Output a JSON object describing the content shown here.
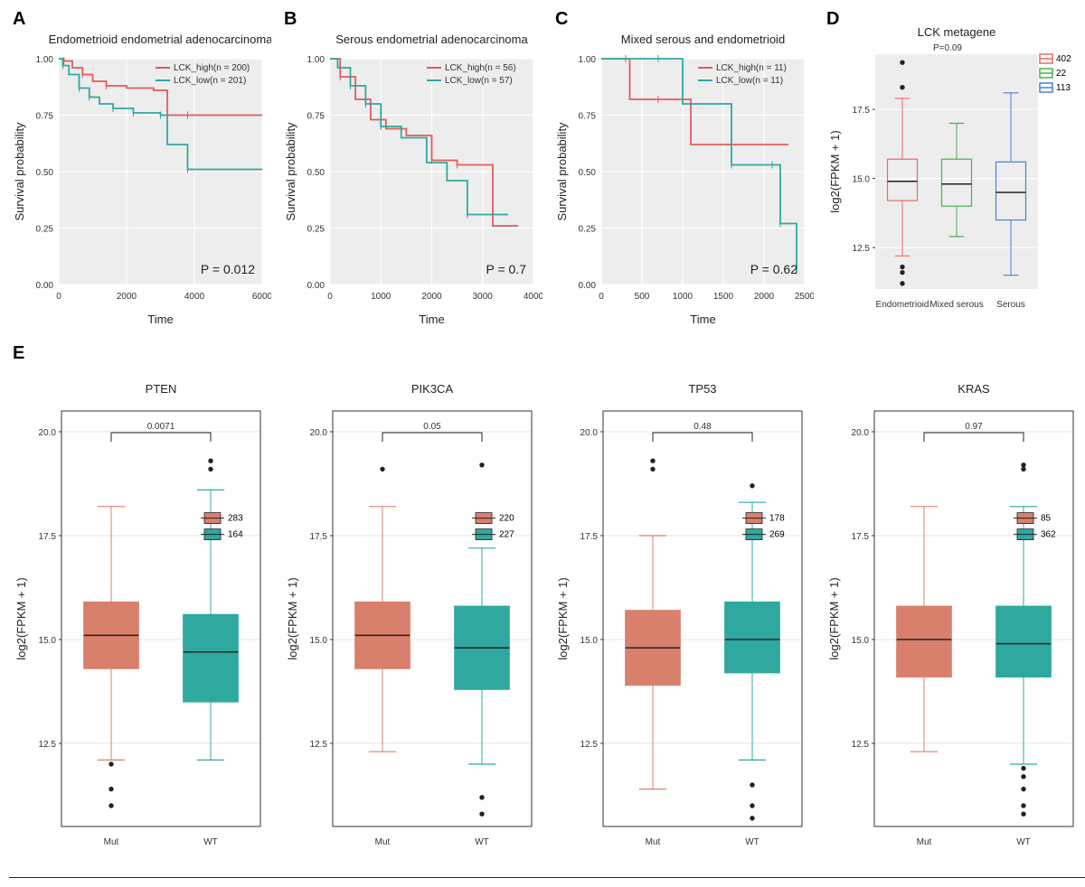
{
  "panelLabels": {
    "A": "A",
    "B": "B",
    "C": "C",
    "D": "D",
    "E": "E"
  },
  "colors": {
    "km_high": "#e15b5b",
    "km_low": "#2fa8a0",
    "box_mut": "#d9806c",
    "box_wt": "#2fa8a0",
    "box_d1": "#e86b63",
    "box_d2": "#4cb050",
    "box_d3": "#4a7fd6",
    "plot_bg": "#ededed",
    "grid": "#ffffff"
  },
  "panelA": {
    "title": "Endometrioid endometrial adenocarcinoma",
    "xlabel": "Time",
    "ylabel": "Survival probability",
    "xlim": [
      0,
      6000
    ],
    "xticks": [
      0,
      2000,
      4000,
      6000
    ],
    "ylim": [
      0,
      1
    ],
    "yticks": [
      0.0,
      0.25,
      0.5,
      0.75,
      1.0
    ],
    "pvalue": "P = 0.012",
    "legend": [
      {
        "label": "LCK_high(n = 200)",
        "color": "#e15b5b"
      },
      {
        "label": "LCK_low(n = 201)",
        "color": "#2fa8a0"
      }
    ],
    "series": [
      {
        "color": "#e15b5b",
        "points": [
          [
            0,
            1.0
          ],
          [
            150,
            0.99
          ],
          [
            400,
            0.96
          ],
          [
            700,
            0.93
          ],
          [
            1000,
            0.9
          ],
          [
            1400,
            0.88
          ],
          [
            2000,
            0.87
          ],
          [
            2800,
            0.86
          ],
          [
            3200,
            0.75
          ],
          [
            3800,
            0.75
          ],
          [
            6000,
            0.75
          ]
        ]
      },
      {
        "color": "#2fa8a0",
        "points": [
          [
            0,
            1.0
          ],
          [
            120,
            0.97
          ],
          [
            300,
            0.93
          ],
          [
            600,
            0.87
          ],
          [
            900,
            0.83
          ],
          [
            1200,
            0.8
          ],
          [
            1600,
            0.78
          ],
          [
            2200,
            0.76
          ],
          [
            3000,
            0.75
          ],
          [
            3200,
            0.62
          ],
          [
            3800,
            0.51
          ],
          [
            5000,
            0.51
          ],
          [
            6000,
            0.51
          ]
        ]
      }
    ]
  },
  "panelB": {
    "title": "Serous endometrial adenocarcinoma",
    "xlabel": "Time",
    "ylabel": "Survival probability",
    "xlim": [
      0,
      4000
    ],
    "xticks": [
      0,
      1000,
      2000,
      3000,
      4000
    ],
    "ylim": [
      0,
      1
    ],
    "yticks": [
      0.0,
      0.25,
      0.5,
      0.75,
      1.0
    ],
    "pvalue": "P = 0.7",
    "legend": [
      {
        "label": "LCK_high(n = 56)",
        "color": "#e15b5b"
      },
      {
        "label": "LCK_low(n = 57)",
        "color": "#2fa8a0"
      }
    ],
    "series": [
      {
        "color": "#e15b5b",
        "points": [
          [
            0,
            1.0
          ],
          [
            200,
            0.92
          ],
          [
            500,
            0.82
          ],
          [
            800,
            0.73
          ],
          [
            1100,
            0.69
          ],
          [
            1500,
            0.66
          ],
          [
            2000,
            0.55
          ],
          [
            2500,
            0.53
          ],
          [
            3000,
            0.53
          ],
          [
            3200,
            0.26
          ],
          [
            3700,
            0.26
          ]
        ]
      },
      {
        "color": "#2fa8a0",
        "points": [
          [
            0,
            1.0
          ],
          [
            150,
            0.96
          ],
          [
            400,
            0.88
          ],
          [
            700,
            0.8
          ],
          [
            1000,
            0.7
          ],
          [
            1400,
            0.65
          ],
          [
            1900,
            0.54
          ],
          [
            2300,
            0.46
          ],
          [
            2700,
            0.31
          ],
          [
            3500,
            0.31
          ]
        ]
      }
    ]
  },
  "panelC": {
    "title": "Mixed serous and endometrioid",
    "xlabel": "Time",
    "ylabel": "Survival probability",
    "xlim": [
      0,
      2500
    ],
    "xticks": [
      0,
      500,
      1000,
      1500,
      2000,
      2500
    ],
    "ylim": [
      0,
      1
    ],
    "yticks": [
      0.0,
      0.25,
      0.5,
      0.75,
      1.0
    ],
    "pvalue": "P = 0.62",
    "legend": [
      {
        "label": "LCK_high(n = 11)",
        "color": "#e15b5b"
      },
      {
        "label": "LCK_low(n = 11)",
        "color": "#2fa8a0"
      }
    ],
    "series": [
      {
        "color": "#e15b5b",
        "points": [
          [
            0,
            1.0
          ],
          [
            300,
            1.0
          ],
          [
            350,
            0.82
          ],
          [
            700,
            0.82
          ],
          [
            900,
            0.82
          ],
          [
            1100,
            0.62
          ],
          [
            1600,
            0.62
          ],
          [
            2000,
            0.62
          ],
          [
            2300,
            0.62
          ]
        ]
      },
      {
        "color": "#2fa8a0",
        "points": [
          [
            0,
            1.0
          ],
          [
            700,
            1.0
          ],
          [
            900,
            1.0
          ],
          [
            1000,
            0.8
          ],
          [
            1400,
            0.8
          ],
          [
            1600,
            0.53
          ],
          [
            2100,
            0.53
          ],
          [
            2200,
            0.27
          ],
          [
            2400,
            0.05
          ]
        ]
      }
    ]
  },
  "panelD": {
    "title": "LCK metagene",
    "ylabel": "log2(FPKM + 1)",
    "ylim": [
      11,
      19.5
    ],
    "yticks": [
      12.5,
      15.0,
      17.5
    ],
    "categories": [
      "Endometrioid",
      "Mixed serous",
      "Serous"
    ],
    "pvalue": "P=0.09",
    "legend": [
      {
        "label": "402",
        "color": "#e86b63"
      },
      {
        "label": "22",
        "color": "#4cb050"
      },
      {
        "label": "113",
        "color": "#4a7fd6"
      }
    ],
    "boxes": [
      {
        "color": "#e86b63",
        "q1": 14.2,
        "median": 14.9,
        "q3": 15.7,
        "wlo": 12.2,
        "whi": 17.9,
        "outliers": [
          11.2,
          11.6,
          11.8,
          18.3,
          19.2
        ]
      },
      {
        "color": "#4cb050",
        "q1": 14.0,
        "median": 14.8,
        "q3": 15.7,
        "wlo": 12.9,
        "whi": 17.0,
        "outliers": []
      },
      {
        "color": "#4a7fd6",
        "q1": 13.5,
        "median": 14.5,
        "q3": 15.6,
        "wlo": 11.5,
        "whi": 18.1,
        "outliers": []
      }
    ]
  },
  "panelE": {
    "ylabel": "log2(FPKM + 1)",
    "ylim": [
      10.5,
      20.5
    ],
    "yticks": [
      12.5,
      15.0,
      17.5,
      20.0
    ],
    "categories": [
      "Mut",
      "WT"
    ],
    "genes": [
      {
        "name": "PTEN",
        "pvalue": "0.0071",
        "legend": [
          {
            "label": "283",
            "color": "#d9806c"
          },
          {
            "label": "164",
            "color": "#2fa8a0"
          }
        ],
        "boxes": [
          {
            "color": "#d9806c",
            "q1": 14.3,
            "median": 15.1,
            "q3": 15.9,
            "wlo": 12.1,
            "whi": 18.2,
            "outliers": [
              11.0,
              11.4,
              12.0
            ]
          },
          {
            "color": "#2fa8a0",
            "q1": 13.5,
            "median": 14.7,
            "q3": 15.6,
            "wlo": 12.1,
            "whi": 18.6,
            "outliers": [
              19.1,
              19.3
            ]
          }
        ]
      },
      {
        "name": "PIK3CA",
        "pvalue": "0.05",
        "legend": [
          {
            "label": "220",
            "color": "#d9806c"
          },
          {
            "label": "227",
            "color": "#2fa8a0"
          }
        ],
        "boxes": [
          {
            "color": "#d9806c",
            "q1": 14.3,
            "median": 15.1,
            "q3": 15.9,
            "wlo": 12.3,
            "whi": 18.2,
            "outliers": [
              19.1
            ]
          },
          {
            "color": "#2fa8a0",
            "q1": 13.8,
            "median": 14.8,
            "q3": 15.8,
            "wlo": 12.0,
            "whi": 17.2,
            "outliers": [
              10.8,
              11.2,
              19.2
            ]
          }
        ]
      },
      {
        "name": "TP53",
        "pvalue": "0.48",
        "legend": [
          {
            "label": "178",
            "color": "#d9806c"
          },
          {
            "label": "269",
            "color": "#2fa8a0"
          }
        ],
        "boxes": [
          {
            "color": "#d9806c",
            "q1": 13.9,
            "median": 14.8,
            "q3": 15.7,
            "wlo": 11.4,
            "whi": 17.5,
            "outliers": [
              19.1,
              19.3
            ]
          },
          {
            "color": "#2fa8a0",
            "q1": 14.2,
            "median": 15.0,
            "q3": 15.9,
            "wlo": 12.1,
            "whi": 18.3,
            "outliers": [
              11.0,
              10.7,
              11.5,
              18.7
            ]
          }
        ]
      },
      {
        "name": "KRAS",
        "pvalue": "0.97",
        "legend": [
          {
            "label": "85",
            "color": "#d9806c"
          },
          {
            "label": "362",
            "color": "#2fa8a0"
          }
        ],
        "boxes": [
          {
            "color": "#d9806c",
            "q1": 14.1,
            "median": 15.0,
            "q3": 15.8,
            "wlo": 12.3,
            "whi": 18.2,
            "outliers": []
          },
          {
            "color": "#2fa8a0",
            "q1": 14.1,
            "median": 14.9,
            "q3": 15.8,
            "wlo": 12.0,
            "whi": 18.2,
            "outliers": [
              10.8,
              11.0,
              11.4,
              11.7,
              11.9,
              19.1,
              19.2
            ]
          }
        ]
      }
    ]
  }
}
